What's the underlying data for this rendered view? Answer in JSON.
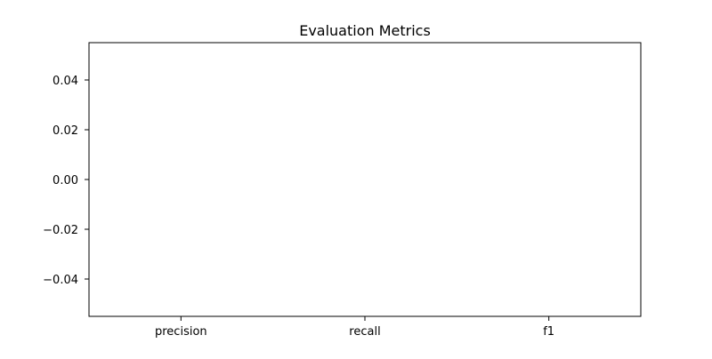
{
  "chart_data": {
    "type": "bar",
    "title": "Evaluation Metrics",
    "categories": [
      "precision",
      "recall",
      "f1"
    ],
    "values": [
      0,
      0,
      0
    ],
    "xlabel": "",
    "ylabel": "",
    "ylim": [
      -0.055,
      0.055
    ],
    "yticks": [
      0.04,
      0.02,
      0.0,
      -0.02,
      -0.04
    ],
    "ytick_labels": [
      "0.04",
      "0.02",
      "0.00",
      "−0.02",
      "−0.04"
    ],
    "grid": false,
    "legend": "none",
    "colors": {
      "axes": "#000000",
      "background": "#ffffff",
      "bar": "#1f77b4"
    }
  }
}
